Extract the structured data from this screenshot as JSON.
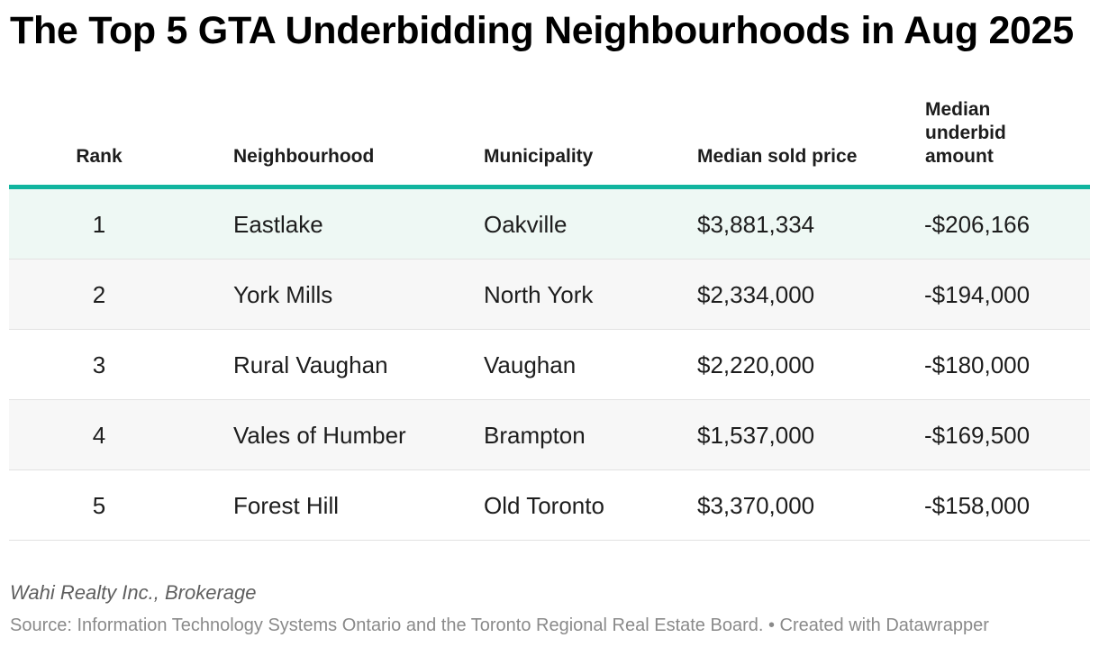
{
  "chart_data": {
    "type": "table",
    "title": "The Top 5 GTA Underbidding Neighbourhoods in Aug 2025",
    "columns": [
      "Rank",
      "Neighbourhood",
      "Municipality",
      "Median sold price",
      "Median underbid amount"
    ],
    "rows": [
      {
        "rank": "1",
        "neighbourhood": "Eastlake",
        "municipality": "Oakville",
        "median_sold_price": "$3,881,334",
        "median_underbid": "-$206,166"
      },
      {
        "rank": "2",
        "neighbourhood": "York Mills",
        "municipality": "North York",
        "median_sold_price": "$2,334,000",
        "median_underbid": "-$194,000"
      },
      {
        "rank": "3",
        "neighbourhood": "Rural Vaughan",
        "municipality": "Vaughan",
        "median_sold_price": "$2,220,000",
        "median_underbid": "-$180,000"
      },
      {
        "rank": "4",
        "neighbourhood": "Vales of Humber",
        "municipality": "Brampton",
        "median_sold_price": "$1,537,000",
        "median_underbid": "-$169,500"
      },
      {
        "rank": "5",
        "neighbourhood": "Forest Hill",
        "municipality": "Old Toronto",
        "median_sold_price": "$3,370,000",
        "median_underbid": "-$158,000"
      }
    ],
    "notes": "Wahi Realty Inc., Brokerage",
    "source": "Source: Information Technology Systems Ontario and the Toronto Regional Real Estate Board. • Created with Datawrapper"
  },
  "colors": {
    "accent": "#11b59f",
    "highlight_row": "#eef8f4",
    "alt_row": "#f7f7f7",
    "plain_row": "#ffffff"
  }
}
